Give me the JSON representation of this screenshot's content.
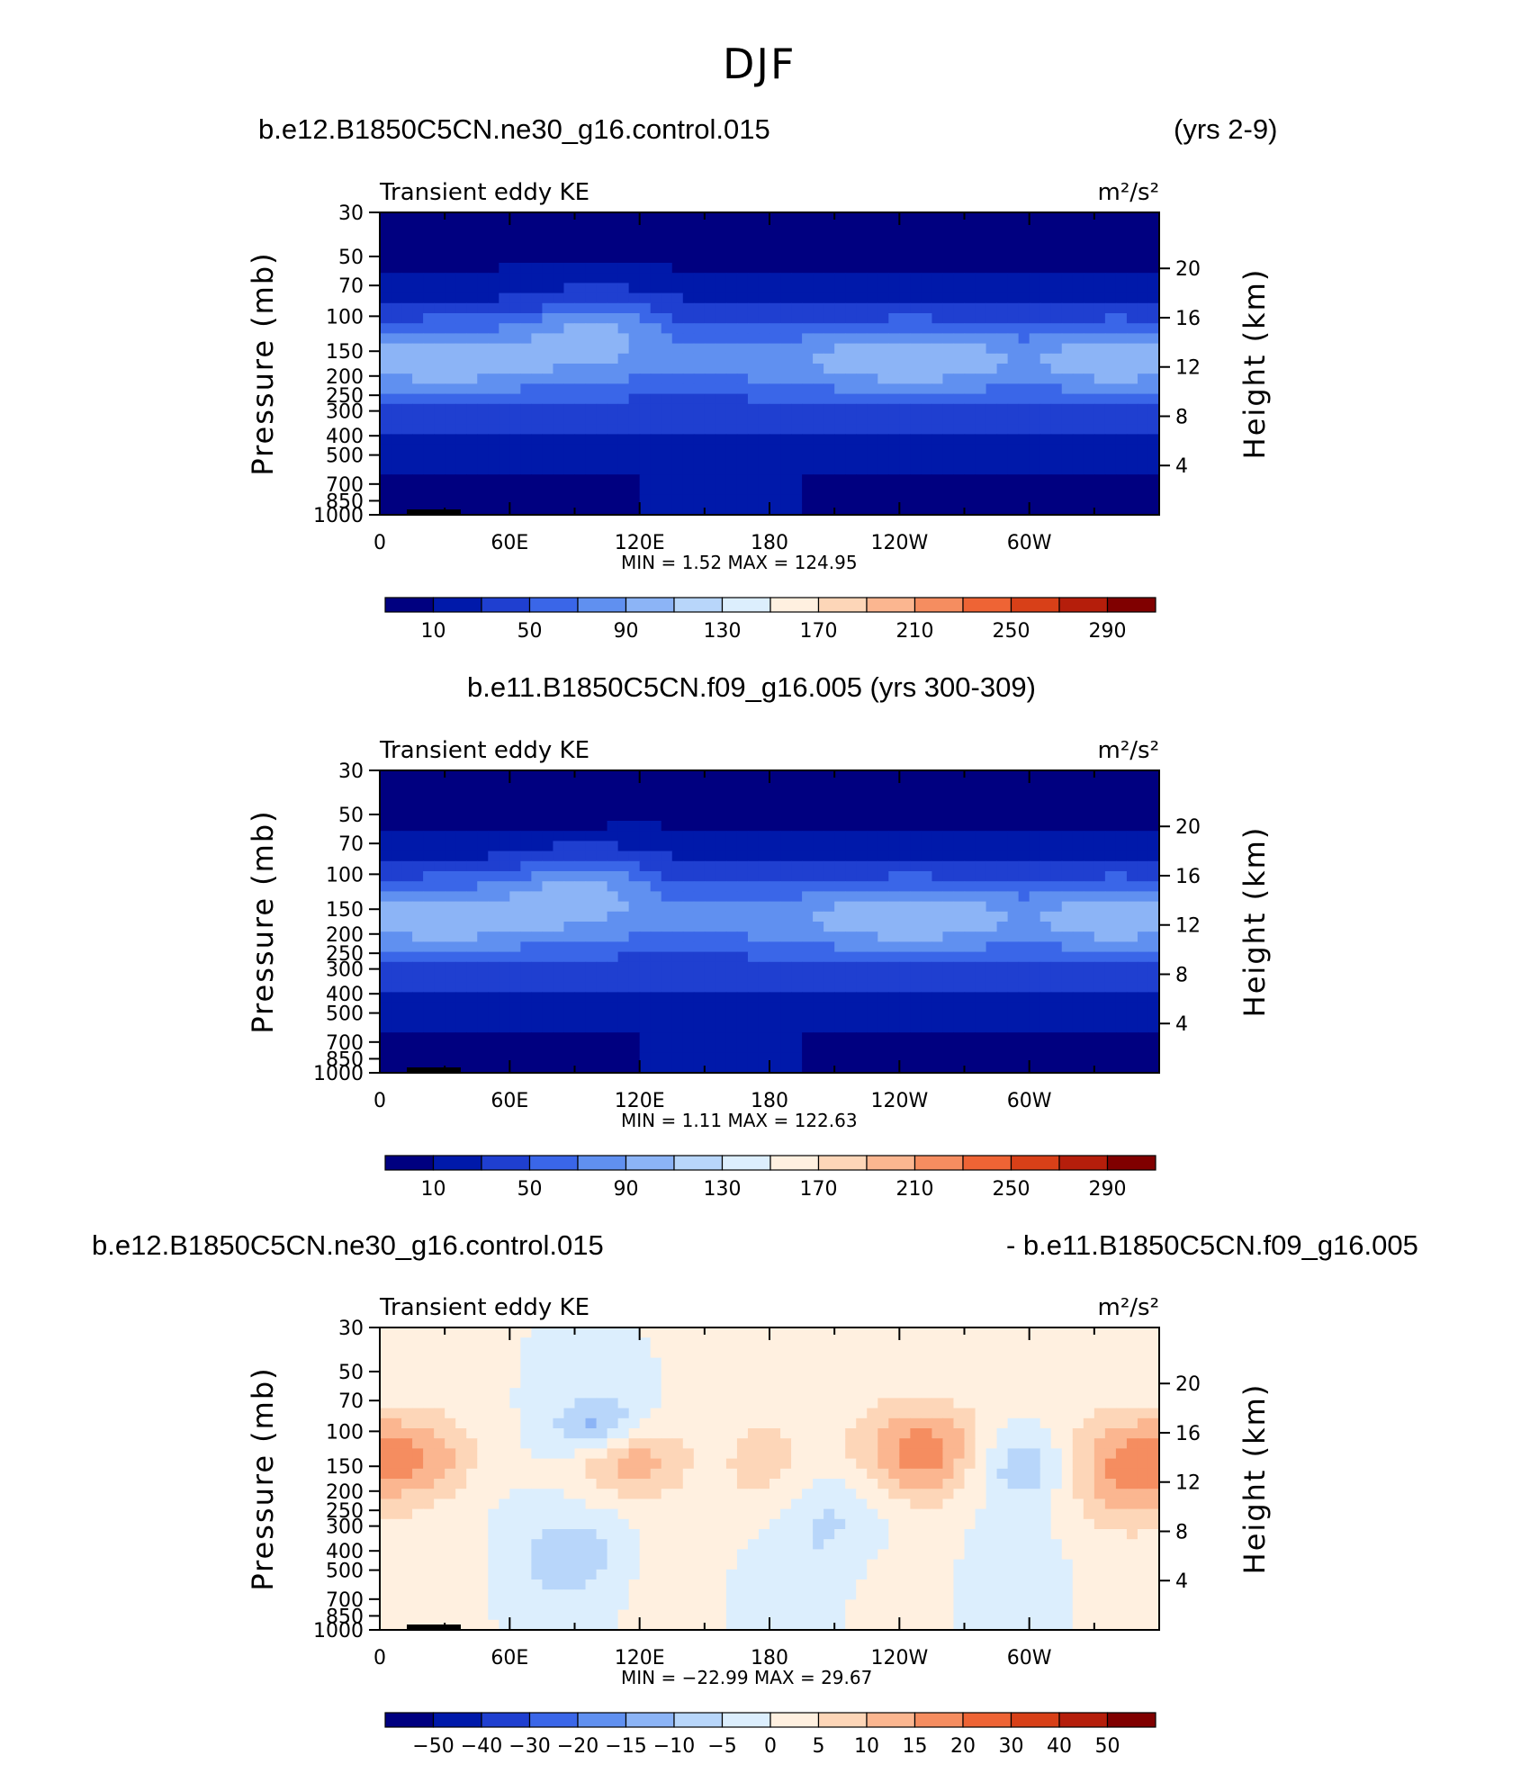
{
  "figure": {
    "suptitle": "DJF",
    "panel1_case": "b.e12.B1850C5CN.ne30_g16.control.015",
    "panel1_years": "(yrs 2-9)",
    "panel2_title": "b.e11.B1850C5CN.f09_g16.005 (yrs 300-309)",
    "panel3_case_a": "b.e12.B1850C5CN.ne30_g16.control.015",
    "panel3_case_b": "- b.e11.B1850C5CN.f09_g16.005"
  },
  "chart_data": [
    {
      "type": "heatmap",
      "variable": "Transient eddy KE",
      "units": "m²/s²",
      "ylabel": "Pressure (mb)",
      "y2label": "Height (km)",
      "x_ticks": [
        "0",
        "60E",
        "120E",
        "180",
        "120W",
        "60W"
      ],
      "p_ticks": [
        "30",
        "50",
        "70",
        "100",
        "150",
        "200",
        "250",
        "300",
        "400",
        "500",
        "700",
        "850",
        "1000"
      ],
      "h_ticks": [
        "20",
        "16",
        "12",
        "8",
        "4"
      ],
      "stats": "MIN =     1.52   MAX =  124.95",
      "colorbar": [
        "10",
        "50",
        "90",
        "130",
        "170",
        "210",
        "250",
        "290"
      ],
      "min": 1.52,
      "max": 124.95
    },
    {
      "type": "heatmap",
      "variable": "Transient eddy KE",
      "units": "m²/s²",
      "ylabel": "Pressure (mb)",
      "y2label": "Height (km)",
      "x_ticks": [
        "0",
        "60E",
        "120E",
        "180",
        "120W",
        "60W"
      ],
      "p_ticks": [
        "30",
        "50",
        "70",
        "100",
        "150",
        "200",
        "250",
        "300",
        "400",
        "500",
        "700",
        "850",
        "1000"
      ],
      "h_ticks": [
        "20",
        "16",
        "12",
        "8",
        "4"
      ],
      "stats": "MIN =     1.11   MAX =  122.63",
      "colorbar": [
        "10",
        "50",
        "90",
        "130",
        "170",
        "210",
        "250",
        "290"
      ],
      "min": 1.11,
      "max": 122.63
    },
    {
      "type": "heatmap",
      "variable": "Transient eddy KE",
      "units": "m²/s²",
      "ylabel": "Pressure (mb)",
      "y2label": "Height (km)",
      "x_ticks": [
        "0",
        "60E",
        "120E",
        "180",
        "120W",
        "60W"
      ],
      "p_ticks": [
        "30",
        "50",
        "70",
        "100",
        "150",
        "200",
        "250",
        "300",
        "400",
        "500",
        "700",
        "850",
        "1000"
      ],
      "h_ticks": [
        "20",
        "16",
        "12",
        "8",
        "4"
      ],
      "stats": "MIN = −22.99   MAX =    29.67",
      "colorbar": [
        "−50",
        "−40",
        "−30",
        "−20",
        "−15",
        "−10",
        "−5",
        "0",
        "5",
        "10",
        "15",
        "20",
        "30",
        "40",
        "50"
      ],
      "min": -22.99,
      "max": 29.67
    }
  ],
  "colors": {
    "blues": [
      "#000080",
      "#0019aa",
      "#1f3fd0",
      "#3a66e8",
      "#6090f0",
      "#8cb4f6",
      "#b8d6fa",
      "#dceefd"
    ],
    "reds": [
      "#fff0e0",
      "#fdd6b8",
      "#fbb690",
      "#f58d60",
      "#ee6435",
      "#d84018",
      "#b51e0b",
      "#800000"
    ]
  }
}
